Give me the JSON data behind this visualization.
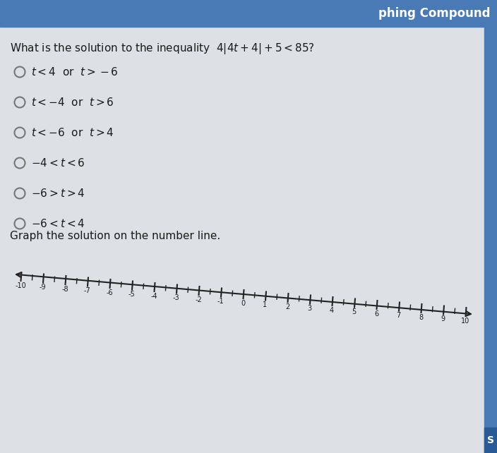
{
  "background_color": "#c8cdd4",
  "header_color": "#4a7ab5",
  "header_text": "phing Compound",
  "question_part1": "What is the solution to the inequality ",
  "question_math": "4|4t + 4| + 5 < 85?",
  "options": [
    "t < 4 or t > −6",
    "t < −4 or t > 6",
    "t < −6 or t > 4",
    "−4 < t < 6",
    "−6 > t > 4",
    "−6 < t < 4"
  ],
  "graph_label": "Graph the solution on the number line.",
  "number_line_min": -10,
  "number_line_max": 10,
  "number_line_labels": [
    -10,
    -9,
    -8,
    -7,
    -6,
    -5,
    -4,
    -3,
    -2,
    -1,
    0,
    1,
    2,
    3,
    4,
    5,
    6,
    7,
    8,
    9,
    10
  ],
  "text_color": "#1a1a1a",
  "option_circle_color": "#777777",
  "number_line_color": "#222222",
  "header_bar_height": 38,
  "right_bar_color": "#4a7ab5",
  "right_bar_dark": "#2a5a95",
  "content_bg": "#e8eaec",
  "option_font_size": 11,
  "question_font_size": 11
}
